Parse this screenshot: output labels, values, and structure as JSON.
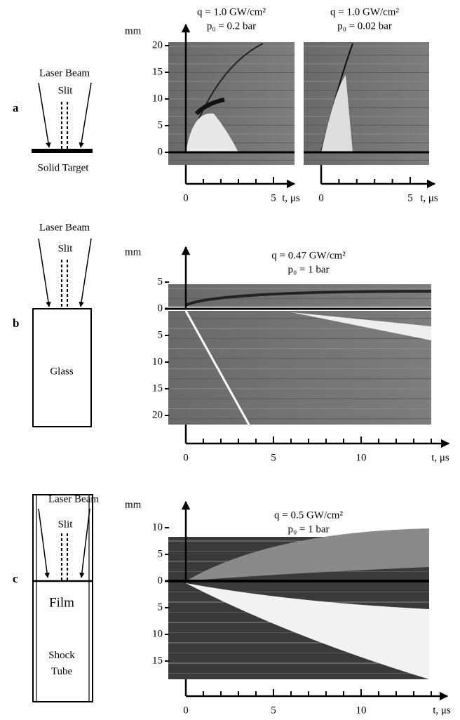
{
  "figure": {
    "panels": [
      {
        "label": "a",
        "diagram": {
          "beam": "Laser Beam",
          "slit": "Slit",
          "target": "Solid Target"
        },
        "plots": [
          {
            "title": "q = 1.0 GW/cm²",
            "subtitle": "p₀ = 0.2 bar",
            "y_label": "mm",
            "x_label": "t, μs",
            "yticks_above": [
              0,
              5,
              10,
              15,
              20
            ],
            "yticks_below": [],
            "xticks": [
              0,
              5
            ]
          },
          {
            "title": "q = 1.0 GW/cm²",
            "subtitle": "p₀ = 0.02 bar",
            "x_label": "t, μs",
            "yticks_above": [],
            "yticks_below": [],
            "xticks": [
              0,
              5
            ]
          }
        ]
      },
      {
        "label": "b",
        "diagram": {
          "beam": "Laser Beam",
          "slit": "Slit",
          "target": "Glass"
        },
        "plots": [
          {
            "title": "q = 0.47 GW/cm²",
            "subtitle": "p₀ = 1 bar",
            "y_label": "mm",
            "x_label": "t, μs",
            "yticks_above": [
              0,
              5
            ],
            "yticks_below": [
              5,
              10,
              15,
              20
            ],
            "xticks": [
              0,
              5,
              10
            ]
          }
        ]
      },
      {
        "label": "c",
        "diagram": {
          "beam": "Laser Beam",
          "slit": "Slit",
          "target": "Film",
          "tube": "Shock Tube"
        },
        "plots": [
          {
            "title": "q = 0.5 GW/cm²",
            "subtitle": "p₀ = 1 bar",
            "y_label": "mm",
            "x_label": "t, μs",
            "yticks_above": [
              0,
              5,
              10
            ],
            "yticks_below": [
              5,
              10,
              15
            ],
            "xticks": [
              0,
              5,
              10
            ]
          }
        ]
      }
    ]
  }
}
